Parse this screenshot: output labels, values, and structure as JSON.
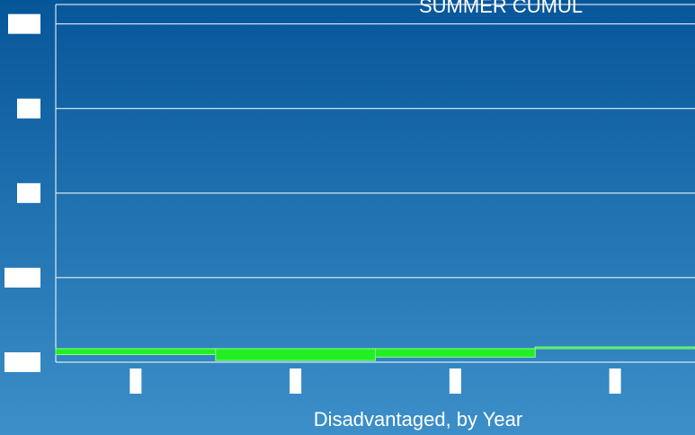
{
  "chart_data": {
    "type": "floating_bar",
    "title": "SUMMER CUMUL",
    "x_label": "Disadvantaged, by Year",
    "categories": [
      null,
      null,
      null,
      null
    ],
    "series": [
      {
        "low": [
          0.09,
          0.02,
          0.06,
          0.16
        ],
        "high": [
          0.16,
          0.16,
          0.16,
          0.18
        ],
        "color": "#22ee22",
        "edge_color": "#88ff88"
      }
    ],
    "ylim": [
      0,
      4.23
    ],
    "yticks": [
      0,
      1,
      2,
      3,
      4
    ],
    "grid": true
  }
}
